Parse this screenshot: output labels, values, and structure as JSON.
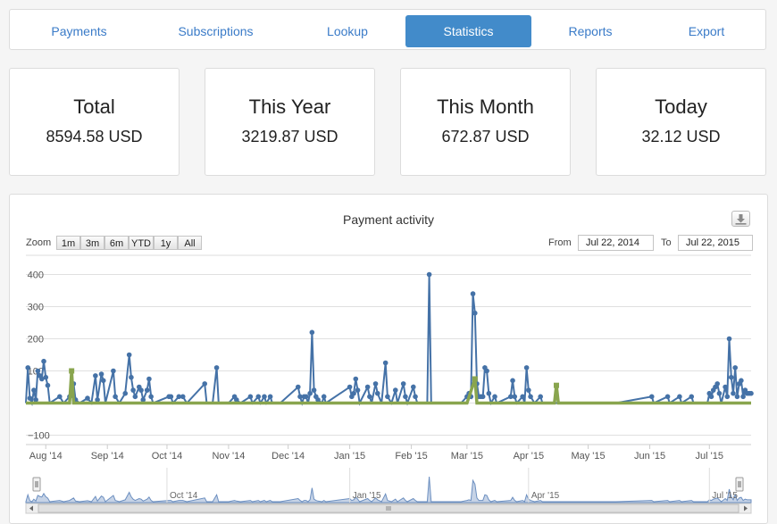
{
  "nav": {
    "tabs": [
      {
        "label": "Payments",
        "active": false
      },
      {
        "label": "Subscriptions",
        "active": false
      },
      {
        "label": "Lookup",
        "active": false
      },
      {
        "label": "Statistics",
        "active": true
      },
      {
        "label": "Reports",
        "active": false
      },
      {
        "label": "Export",
        "active": false
      }
    ]
  },
  "stats": [
    {
      "title": "Total",
      "value": "8594.58 USD"
    },
    {
      "title": "This Year",
      "value": "3219.87 USD"
    },
    {
      "title": "This Month",
      "value": "672.87 USD"
    },
    {
      "title": "Today",
      "value": "32.12 USD"
    }
  ],
  "chart": {
    "title": "Payment activity",
    "download_icon": "download-icon",
    "zoom_label": "Zoom",
    "zoom_buttons": [
      "1m",
      "3m",
      "6m",
      "YTD",
      "1y",
      "All"
    ],
    "from_label": "From",
    "from_value": "Jul 22, 2014",
    "to_label": "To",
    "to_value": "Jul 22, 2015",
    "colors": {
      "primary": "#4572a7",
      "secondary": "#89a54e",
      "accent": "#428bca"
    }
  },
  "chart_data": {
    "type": "line",
    "title": "Payment activity",
    "ylim": [
      -100,
      400
    ],
    "yticks": [
      "400",
      "300",
      "200",
      "100",
      "−100"
    ],
    "xticks": [
      "Aug '14",
      "Sep '14",
      "Oct '14",
      "Nov '14",
      "Dec '14",
      "Jan '15",
      "Feb '15",
      "Mar '15",
      "Apr '15",
      "May '15",
      "Jun '15",
      "Jul '15"
    ],
    "navigator_ticks": [
      "Oct '14",
      "Jan '15",
      "Apr '15",
      "Jul '15"
    ],
    "grid": true,
    "series": [
      {
        "color": "#4572a7",
        "points": [
          [
            "2014-07-22",
            0
          ],
          [
            "2014-07-23",
            110
          ],
          [
            "2014-07-24",
            15
          ],
          [
            "2014-07-25",
            0
          ],
          [
            "2014-07-26",
            40
          ],
          [
            "2014-07-27",
            10
          ],
          [
            "2014-07-28",
            100
          ],
          [
            "2014-07-29",
            85
          ],
          [
            "2014-07-30",
            75
          ],
          [
            "2014-07-31",
            130
          ],
          [
            "2014-08-01",
            80
          ],
          [
            "2014-08-02",
            55
          ],
          [
            "2014-08-03",
            0
          ],
          [
            "2014-08-08",
            20
          ],
          [
            "2014-08-10",
            0
          ],
          [
            "2014-08-13",
            20
          ],
          [
            "2014-08-15",
            60
          ],
          [
            "2014-08-16",
            10
          ],
          [
            "2014-08-18",
            0
          ],
          [
            "2014-08-22",
            15
          ],
          [
            "2014-08-24",
            0
          ],
          [
            "2014-08-26",
            85
          ],
          [
            "2014-08-27",
            10
          ],
          [
            "2014-08-29",
            90
          ],
          [
            "2014-08-30",
            70
          ],
          [
            "2014-08-31",
            0
          ],
          [
            "2014-09-04",
            100
          ],
          [
            "2014-09-05",
            20
          ],
          [
            "2014-09-07",
            0
          ],
          [
            "2014-09-10",
            30
          ],
          [
            "2014-09-12",
            150
          ],
          [
            "2014-09-13",
            80
          ],
          [
            "2014-09-14",
            40
          ],
          [
            "2014-09-15",
            20
          ],
          [
            "2014-09-17",
            50
          ],
          [
            "2014-09-18",
            40
          ],
          [
            "2014-09-19",
            10
          ],
          [
            "2014-09-21",
            40
          ],
          [
            "2014-09-22",
            75
          ],
          [
            "2014-09-23",
            20
          ],
          [
            "2014-09-24",
            0
          ],
          [
            "2014-10-02",
            20
          ],
          [
            "2014-10-03",
            20
          ],
          [
            "2014-10-04",
            0
          ],
          [
            "2014-10-07",
            20
          ],
          [
            "2014-10-09",
            20
          ],
          [
            "2014-10-11",
            0
          ],
          [
            "2014-10-20",
            60
          ],
          [
            "2014-10-21",
            0
          ],
          [
            "2014-10-24",
            0
          ],
          [
            "2014-10-26",
            110
          ],
          [
            "2014-10-27",
            0
          ],
          [
            "2014-11-01",
            0
          ],
          [
            "2014-11-04",
            20
          ],
          [
            "2014-11-05",
            10
          ],
          [
            "2014-11-07",
            0
          ],
          [
            "2014-11-12",
            20
          ],
          [
            "2014-11-13",
            0
          ],
          [
            "2014-11-16",
            20
          ],
          [
            "2014-11-17",
            0
          ],
          [
            "2014-11-19",
            20
          ],
          [
            "2014-11-20",
            0
          ],
          [
            "2014-11-22",
            20
          ],
          [
            "2014-11-23",
            0
          ],
          [
            "2014-11-27",
            0
          ],
          [
            "2014-12-06",
            50
          ],
          [
            "2014-12-07",
            20
          ],
          [
            "2014-12-08",
            0
          ],
          [
            "2014-12-09",
            20
          ],
          [
            "2014-12-10",
            20
          ],
          [
            "2014-12-11",
            0
          ],
          [
            "2014-12-12",
            30
          ],
          [
            "2014-12-13",
            220
          ],
          [
            "2014-12-14",
            40
          ],
          [
            "2014-12-15",
            20
          ],
          [
            "2014-12-16",
            10
          ],
          [
            "2014-12-18",
            0
          ],
          [
            "2014-12-19",
            20
          ],
          [
            "2014-12-20",
            0
          ],
          [
            "2015-01-01",
            50
          ],
          [
            "2015-01-02",
            20
          ],
          [
            "2015-01-03",
            30
          ],
          [
            "2015-01-04",
            75
          ],
          [
            "2015-01-05",
            40
          ],
          [
            "2015-01-06",
            0
          ],
          [
            "2015-01-10",
            50
          ],
          [
            "2015-01-11",
            20
          ],
          [
            "2015-01-12",
            0
          ],
          [
            "2015-01-14",
            60
          ],
          [
            "2015-01-15",
            30
          ],
          [
            "2015-01-17",
            0
          ],
          [
            "2015-01-19",
            125
          ],
          [
            "2015-01-20",
            20
          ],
          [
            "2015-01-22",
            0
          ],
          [
            "2015-01-24",
            40
          ],
          [
            "2015-01-25",
            0
          ],
          [
            "2015-01-28",
            60
          ],
          [
            "2015-01-29",
            20
          ],
          [
            "2015-01-30",
            0
          ],
          [
            "2015-02-02",
            50
          ],
          [
            "2015-02-03",
            20
          ],
          [
            "2015-02-04",
            0
          ],
          [
            "2015-02-09",
            0
          ],
          [
            "2015-02-10",
            400
          ],
          [
            "2015-02-11",
            0
          ],
          [
            "2015-02-15",
            0
          ],
          [
            "2015-02-23",
            0
          ],
          [
            "2015-02-26",
            0
          ],
          [
            "2015-03-01",
            20
          ],
          [
            "2015-03-02",
            30
          ],
          [
            "2015-03-03",
            20
          ],
          [
            "2015-03-04",
            340
          ],
          [
            "2015-03-05",
            280
          ],
          [
            "2015-03-06",
            60
          ],
          [
            "2015-03-07",
            20
          ],
          [
            "2015-03-08",
            20
          ],
          [
            "2015-03-09",
            20
          ],
          [
            "2015-03-10",
            110
          ],
          [
            "2015-03-11",
            100
          ],
          [
            "2015-03-12",
            30
          ],
          [
            "2015-03-13",
            0
          ],
          [
            "2015-03-15",
            20
          ],
          [
            "2015-03-16",
            0
          ],
          [
            "2015-03-23",
            20
          ],
          [
            "2015-03-24",
            70
          ],
          [
            "2015-03-25",
            20
          ],
          [
            "2015-03-26",
            0
          ],
          [
            "2015-03-29",
            20
          ],
          [
            "2015-03-30",
            0
          ],
          [
            "2015-03-31",
            110
          ],
          [
            "2015-04-01",
            40
          ],
          [
            "2015-04-02",
            20
          ],
          [
            "2015-04-04",
            0
          ],
          [
            "2015-04-07",
            20
          ],
          [
            "2015-04-08",
            0
          ],
          [
            "2015-04-15",
            0
          ],
          [
            "2015-05-01",
            0
          ],
          [
            "2015-05-15",
            0
          ],
          [
            "2015-06-02",
            20
          ],
          [
            "2015-06-03",
            0
          ],
          [
            "2015-06-10",
            20
          ],
          [
            "2015-06-11",
            0
          ],
          [
            "2015-06-16",
            20
          ],
          [
            "2015-06-17",
            0
          ],
          [
            "2015-06-22",
            20
          ],
          [
            "2015-06-23",
            0
          ],
          [
            "2015-06-30",
            0
          ],
          [
            "2015-07-01",
            30
          ],
          [
            "2015-07-02",
            20
          ],
          [
            "2015-07-03",
            40
          ],
          [
            "2015-07-04",
            50
          ],
          [
            "2015-07-05",
            60
          ],
          [
            "2015-07-06",
            30
          ],
          [
            "2015-07-07",
            0
          ],
          [
            "2015-07-09",
            50
          ],
          [
            "2015-07-10",
            20
          ],
          [
            "2015-07-11",
            200
          ],
          [
            "2015-07-12",
            80
          ],
          [
            "2015-07-13",
            30
          ],
          [
            "2015-07-14",
            110
          ],
          [
            "2015-07-15",
            20
          ],
          [
            "2015-07-16",
            60
          ],
          [
            "2015-07-17",
            70
          ],
          [
            "2015-07-18",
            20
          ],
          [
            "2015-07-19",
            40
          ],
          [
            "2015-07-20",
            30
          ],
          [
            "2015-07-21",
            30
          ],
          [
            "2015-07-22",
            30
          ]
        ]
      },
      {
        "color": "#89a54e",
        "points": [
          [
            "2014-07-22",
            0
          ],
          [
            "2014-08-01",
            0
          ],
          [
            "2014-08-13",
            0
          ],
          [
            "2014-08-14",
            100
          ],
          [
            "2014-08-15",
            0
          ],
          [
            "2014-09-01",
            0
          ],
          [
            "2014-12-01",
            0
          ],
          [
            "2015-03-01",
            0
          ],
          [
            "2015-03-05",
            75
          ],
          [
            "2015-03-06",
            0
          ],
          [
            "2015-04-01",
            0
          ],
          [
            "2015-04-14",
            0
          ],
          [
            "2015-04-15",
            55
          ],
          [
            "2015-04-16",
            0
          ],
          [
            "2015-06-01",
            0
          ],
          [
            "2015-07-22",
            0
          ]
        ]
      }
    ]
  }
}
